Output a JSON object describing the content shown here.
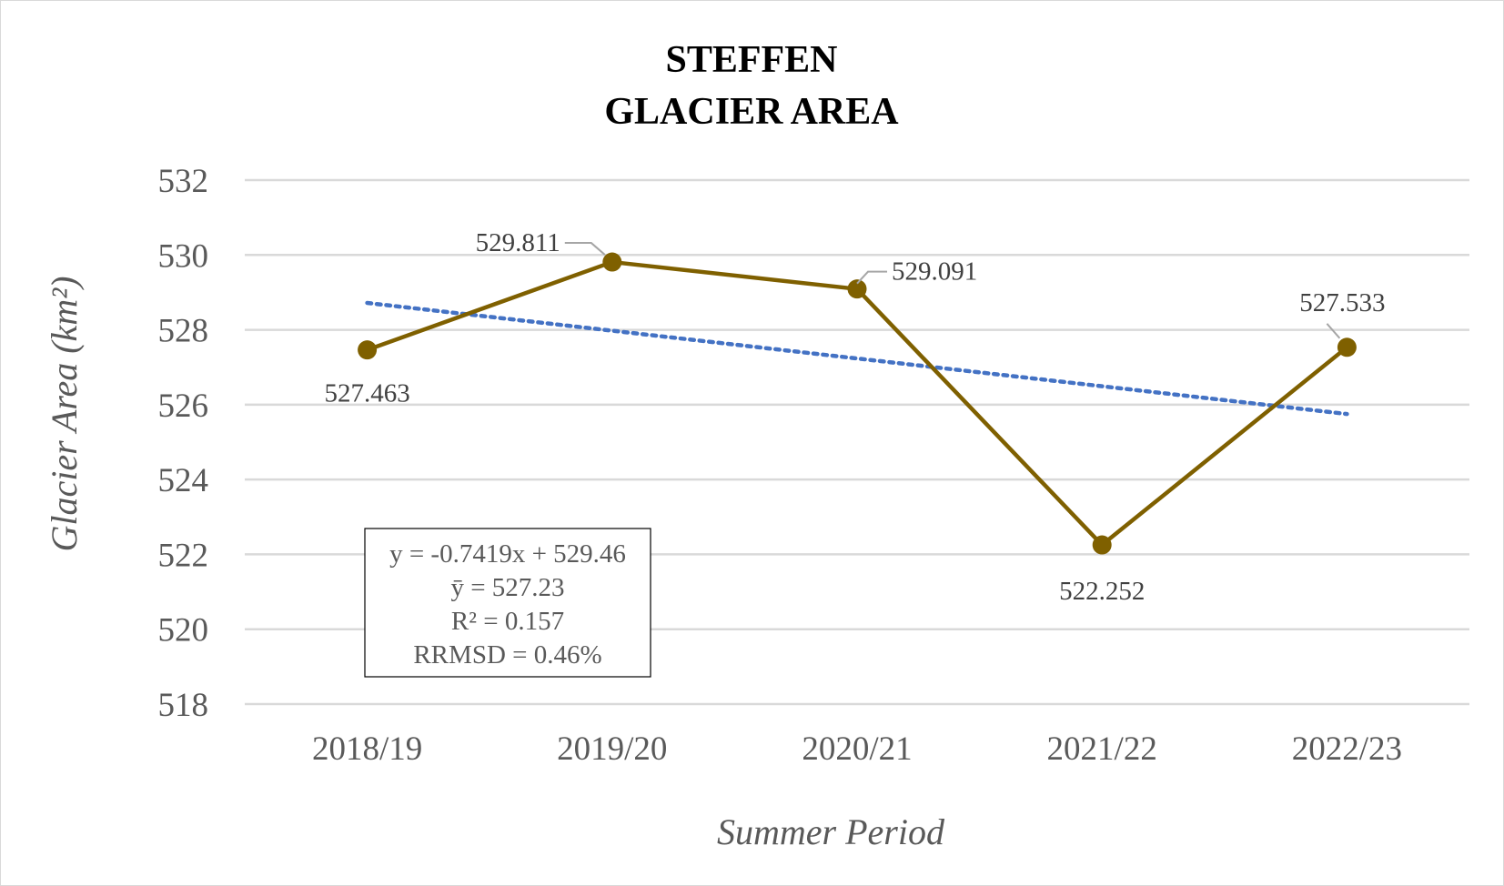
{
  "chart_data": {
    "type": "line",
    "title_lines": [
      "STEFFEN",
      "GLACIER AREA"
    ],
    "xlabel": "Summer Period",
    "ylabel": "Glacier Area (km²)",
    "categories": [
      "2018/19",
      "2019/20",
      "2020/21",
      "2021/22",
      "2022/23"
    ],
    "series": [
      {
        "values": [
          527.463,
          529.811,
          529.091,
          522.252,
          527.533
        ],
        "data_labels": [
          "527.463",
          "529.811",
          "529.091",
          "522.252",
          "527.533"
        ],
        "color": "#7F6000"
      }
    ],
    "trendline": {
      "type": "linear",
      "slope": -0.7419,
      "intercept": 529.46,
      "style": "dotted",
      "color": "#4472C4"
    },
    "stats_box": [
      "y = -0.7419x + 529.46",
      "ȳ = 527.23",
      "R² = 0.157",
      "RRMSD = 0.46%"
    ],
    "ylim": [
      518,
      532
    ],
    "yticks": [
      518,
      520,
      522,
      524,
      526,
      528,
      530,
      532
    ],
    "grid": true,
    "legend": "none"
  }
}
